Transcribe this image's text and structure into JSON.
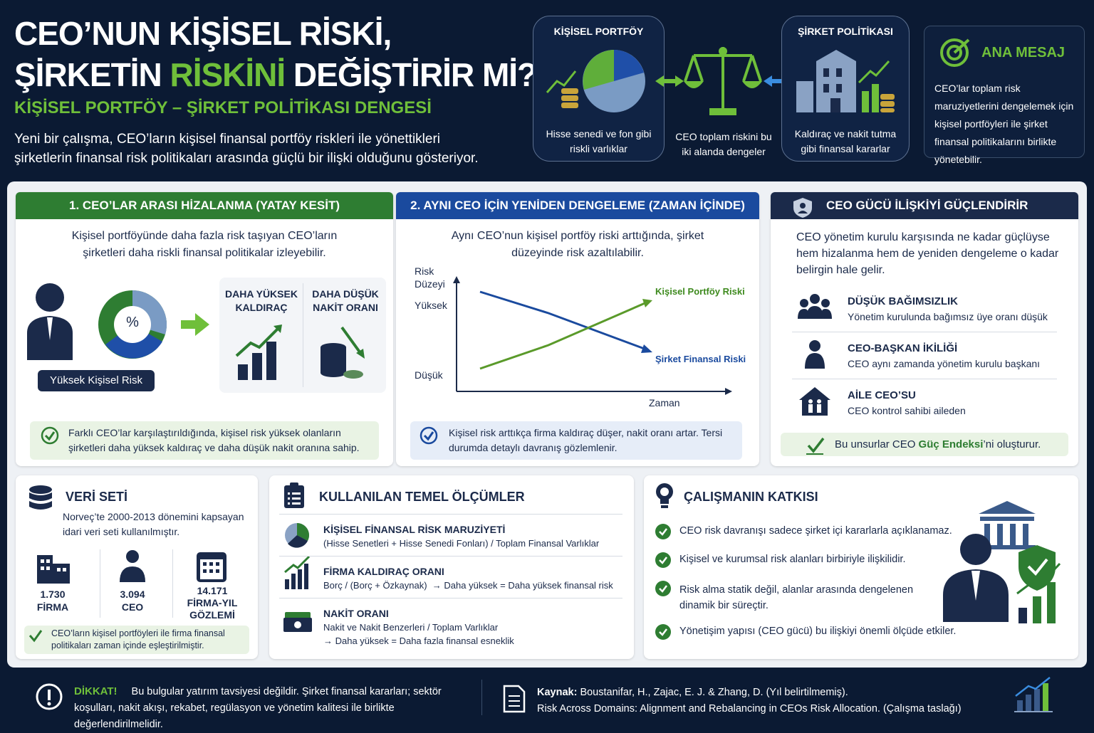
{
  "header": {
    "title_line1": "CEO’NUN KİŞİSEL RİSKİ,",
    "title_line2_start": "ŞİRKETİN ",
    "title_highlight": "RİSKİNİ",
    "title_line2_end": " DEĞİŞTİRİR Mİ?",
    "subtitle": "KİŞİSEL PORTFÖY – ŞİRKET POLİTİKASI DENGESİ",
    "intro": "Yeni bir çalışma, CEO’ların kişisel finansal portföy riskleri ile yönettikleri şirketlerin finansal risk politikaları arasında güçlü bir ilişki olduğunu gösteriyor."
  },
  "diagram": {
    "left": {
      "title": "KİŞİSEL PORTFÖY",
      "caption": "Hisse senedi ve fon gibi riskli varlıklar"
    },
    "center": {
      "caption": "CEO toplam riskini bu iki alanda dengeler"
    },
    "right": {
      "title": "ŞİRKET POLİTİKASI",
      "caption": "Kaldıraç ve nakit tutma gibi finansal kararlar"
    }
  },
  "key_message": {
    "title": "ANA MESAJ",
    "text": "CEO’lar toplam risk maruziyetlerini dengelemek için kişisel portföyleri ile şirket finansal politikalarını birlikte yönetebilir."
  },
  "section1": {
    "title": "1. CEO’LAR ARASI HİZALANMA (YATAY KESİT)",
    "text": "Kişisel portföyünde daha fazla risk taşıyan CEO’ların şirketleri daha riskli finansal politikalar izleyebilir.",
    "icon_symbol": "%",
    "person_label": "Yüksek Kişisel Risk",
    "effects": [
      "DAHA YÜKSEK KALDIRAÇ",
      "DAHA DÜŞÜK NAKİT ORANI"
    ],
    "note": "Farklı CEO’lar karşılaştırıldığında, kişisel risk yüksek olanların şirketleri daha yüksek kaldıraç ve daha düşük nakit oranına sahip."
  },
  "section2": {
    "title": "2. AYNI CEO İÇİN YENİDEN DENGELEME (ZAMAN İÇİNDE)",
    "text": "Aynı CEO’nun kişisel portföy riski arttığında, şirket düzeyinde risk azaltılabilir.",
    "chart": {
      "y_label": "Risk Düzeyi",
      "high": "Yüksek",
      "low": "Düşük",
      "x_label": "Zaman",
      "series": [
        "Kişisel Portföy Riski",
        "Şirket Finansal Riski"
      ]
    },
    "note": "Kişisel risk arttıkça firma kaldıraç düşer, nakit oranı artar. Tersi durumda detaylı davranış gözlemlenir."
  },
  "section3": {
    "title": "CEO GÜCÜ İLİŞKİYİ GÜÇLENDİRİR",
    "text": "CEO yönetim kurulu karşısında ne kadar güçlüyse hem hizalanma hem de yeniden dengeleme o kadar belirgin hale gelir.",
    "items": [
      {
        "title": "DÜŞÜK BAĞIMSIZLIK",
        "text": "Yönetim kurulunda bağımsız üye oranı düşük"
      },
      {
        "title": "CEO-BAŞKAN İKİLİĞİ",
        "text": "CEO aynı zamanda yönetim kurulu başkanı"
      },
      {
        "title": "AİLE CEO’SU",
        "text": "CEO kontrol sahibi aileden"
      }
    ],
    "note_start": "Bu unsurlar CEO ",
    "note_highlight": "Güç Endeksi",
    "note_end": "’ni oluşturur."
  },
  "dataset": {
    "title": "VERİ SETİ",
    "text": "Norveç’te 2000-2013 dönemini kapsayan idari veri seti kullanılmıştır.",
    "stats": [
      {
        "value": "1.730",
        "label": "FİRMA"
      },
      {
        "value": "3.094",
        "label": "CEO"
      },
      {
        "value": "14.171",
        "label": "FİRMA-YIL GÖZLEMİ"
      }
    ],
    "note": "CEO’ların kişisel portföyleri ile firma finansal politikaları zaman içinde eşleştirilmiştir."
  },
  "measures": {
    "title": "KULLANILAN TEMEL ÖLÇÜMLER",
    "items": [
      {
        "title": "KİŞİSEL FİNANSAL RİSK MARUZİYETİ",
        "lines": [
          "(Hisse Senetleri + Hisse Senedi Fonları) / Toplam Finansal Varlıklar"
        ]
      },
      {
        "title": "FİRMA KALDIRAÇ ORANI",
        "lines": [
          "Borç / (Borç + Özkaynak)  → Daha yüksek = Daha yüksek finansal risk"
        ]
      },
      {
        "title": "NAKİT ORANI",
        "lines": [
          "Nakit ve Nakit Benzerleri / Toplam Varlıklar",
          "→ Daha yüksek = Daha fazla finansal esneklik"
        ]
      }
    ]
  },
  "contribution": {
    "title": "ÇALIŞMANIN KATKISI",
    "items": [
      "CEO risk davranışı sadece şirket içi kararlarla açıklanamaz.",
      "Kişisel ve kurumsal risk alanları birbiriyle ilişkilidir.",
      "Risk alma statik değil, alanlar arasında dengelenen dinamik bir süreçtir.",
      "Yönetişim yapısı (CEO gücü) bu ilişkiyi önemli ölçüde etkiler."
    ]
  },
  "footer": {
    "warning_title": "DİKKAT!",
    "warning_text": "Bu bulgular yatırım tavsiyesi değildir. Şirket finansal kararları; sektör koşulları, nakit akışı, rekabet, regülasyon ve yönetim kalitesi ile birlikte değerlendirilmelidir.",
    "source_label": "Kaynak:",
    "source_text": " Boustanifar, H., Zajac, E. J. & Zhang, D. (Yıl belirtilmemiş).",
    "source_title": "Risk Across Domains: Alignment and Rebalancing in CEOs Risk Allocation. (Çalışma taslağı)"
  }
}
